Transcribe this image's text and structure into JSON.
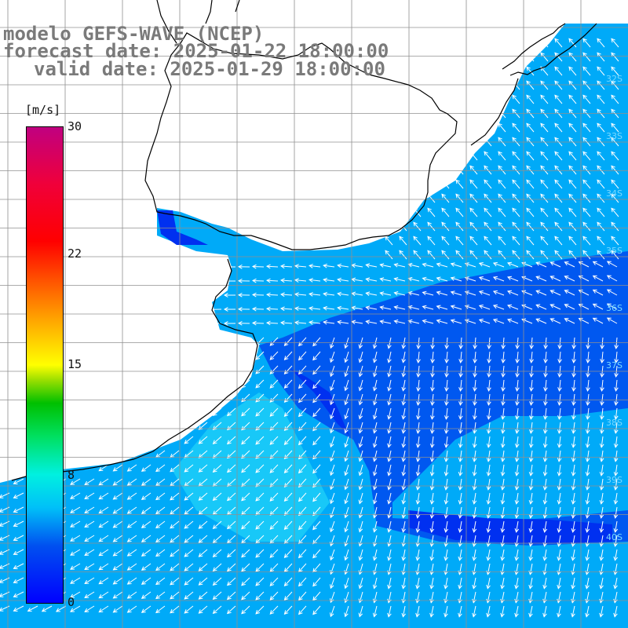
{
  "title": {
    "line1": "modelo GEFS-WAVE (NCEP)",
    "line2": "forecast date: 2025-01-22 18:00:00",
    "line3": "valid date: 2025-01-29 18:00:00"
  },
  "colorbar": {
    "unit": "[m/s]",
    "ticks": [
      {
        "label": "30",
        "value": 30
      },
      {
        "label": "22",
        "value": 22
      },
      {
        "label": "15",
        "value": 15
      },
      {
        "label": "8",
        "value": 8
      },
      {
        "label": "0",
        "value": 0
      }
    ],
    "range": [
      0,
      30
    ]
  },
  "latitude_labels": [
    "32S",
    "33S",
    "34S",
    "35S",
    "36S",
    "37S",
    "38S",
    "39S",
    "40S"
  ],
  "colors": {
    "land": "#ffffff",
    "grid": "#909090",
    "coast": "#000000",
    "arrow": "#ffffff",
    "title": "#7a7a7a",
    "wind_mid": "#00aaf8",
    "wind_low": "#0030f0"
  },
  "map_extent": {
    "lon": [
      -61,
      -50
    ],
    "lat": [
      -41,
      -30
    ]
  }
}
